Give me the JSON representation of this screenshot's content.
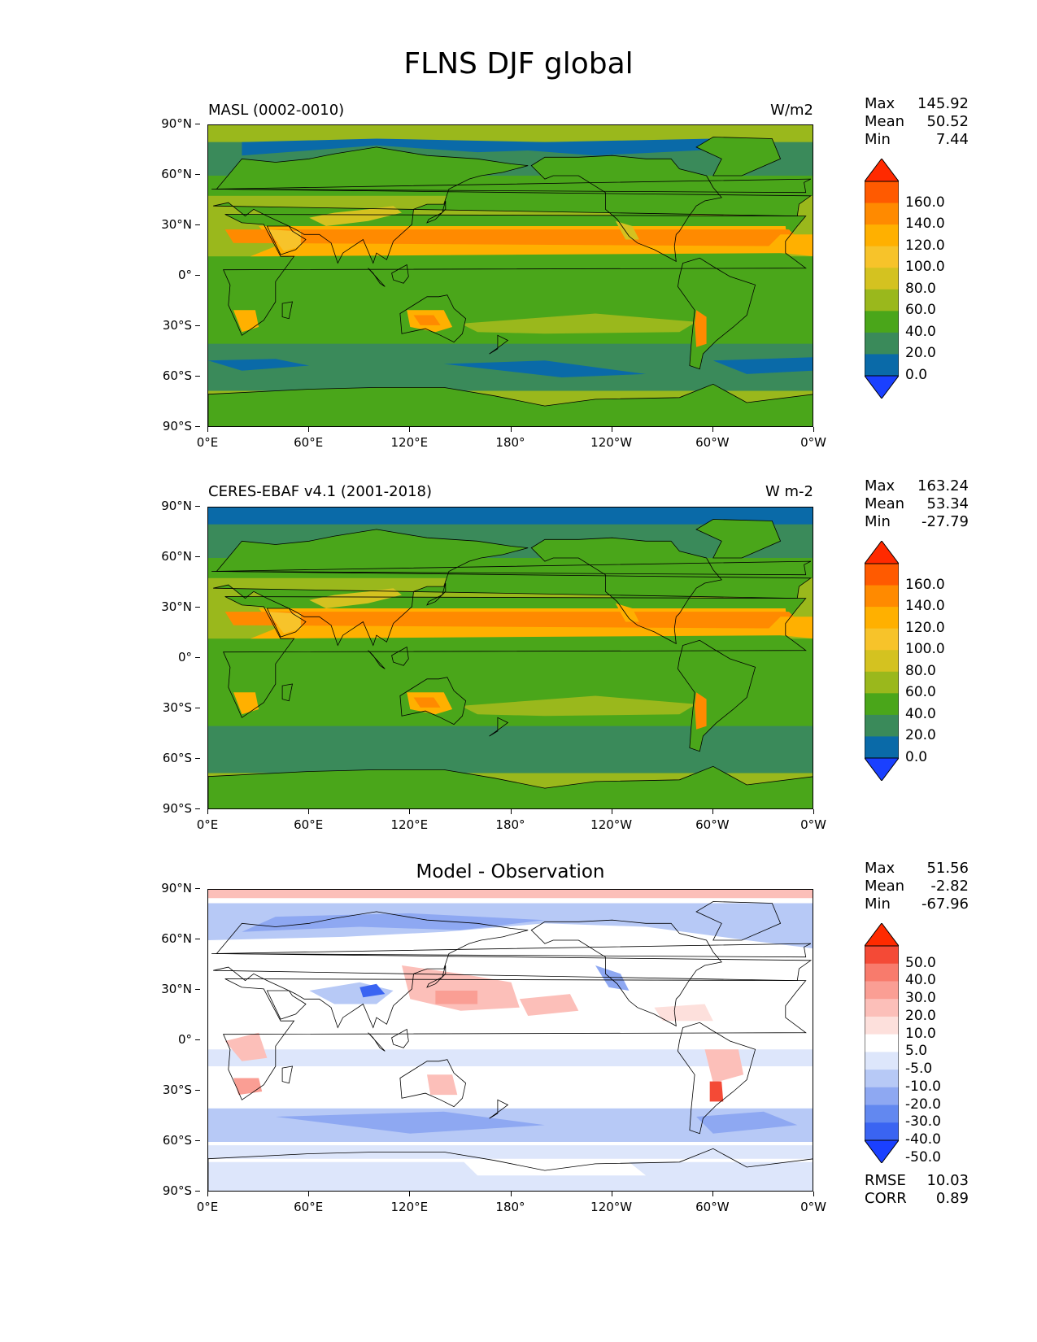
{
  "figure": {
    "title": "FLNS DJF global"
  },
  "axes": {
    "lat_labels": [
      "90°N",
      "60°N",
      "30°N",
      "0°",
      "30°S",
      "60°S",
      "90°S"
    ],
    "lon_labels": [
      "0°E",
      "60°E",
      "120°E",
      "180°",
      "120°W",
      "60°W",
      "0°W"
    ]
  },
  "panels": [
    {
      "left_label": "MASL (0002-0010)",
      "right_label": "W/m2",
      "center_title": "",
      "stats": {
        "max_label": "Max",
        "max": "145.92",
        "mean_label": "Mean",
        "mean": "50.52",
        "min_label": "Min",
        "min": "7.44"
      }
    },
    {
      "left_label": "CERES-EBAF v4.1 (2001-2018)",
      "right_label": "W m-2",
      "center_title": "",
      "stats": {
        "max_label": "Max",
        "max": "163.24",
        "mean_label": "Mean",
        "mean": "53.34",
        "min_label": "Min",
        "min": "-27.79"
      }
    },
    {
      "left_label": "",
      "right_label": "",
      "center_title": "Model - Observation",
      "stats": {
        "max_label": "Max",
        "max": "51.56",
        "mean_label": "Mean",
        "mean": "-2.82",
        "min_label": "Min",
        "min": "-67.96"
      },
      "metrics": {
        "rmse_label": "RMSE",
        "rmse": "10.03",
        "corr_label": "CORR",
        "corr": "0.89"
      }
    }
  ],
  "colorbars": {
    "field": {
      "ticks": [
        "160.0",
        "140.0",
        "120.0",
        "100.0",
        "80.0",
        "60.0",
        "40.0",
        "20.0",
        "0.0"
      ],
      "colors_top_to_bottom": [
        "#ff2a00",
        "#ff5a00",
        "#ff8a00",
        "#ffb000",
        "#f7c32a",
        "#d4c220",
        "#9ab81c",
        "#4aa61a",
        "#3a8a5a",
        "#0a6aa8",
        "#1a40ff"
      ]
    },
    "diff": {
      "ticks": [
        "50.0",
        "40.0",
        "30.0",
        "20.0",
        "10.0",
        "5.0",
        "-5.0",
        "-10.0",
        "-20.0",
        "-30.0",
        "-40.0",
        "-50.0"
      ],
      "colors_top_to_bottom": [
        "#ff2a00",
        "#f44a36",
        "#f87b6c",
        "#fa9e94",
        "#fcbfb9",
        "#fde0dc",
        "#ffffff",
        "#dde6fb",
        "#b7c9f6",
        "#8ea8f2",
        "#6288f0",
        "#3a64f2",
        "#1a40ff"
      ]
    }
  }
}
